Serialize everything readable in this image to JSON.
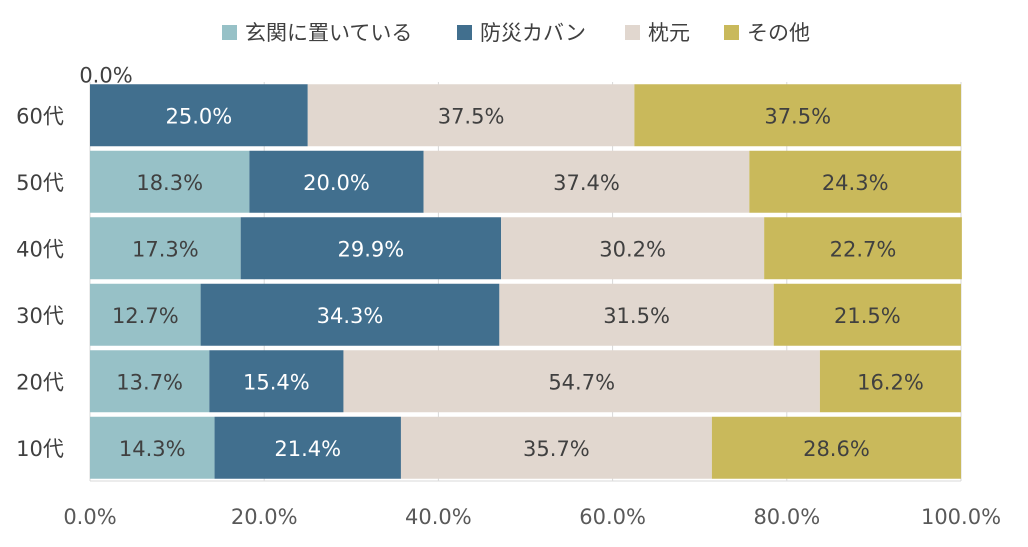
{
  "chart_data": {
    "type": "bar",
    "orientation": "horizontal",
    "stacked": "percent",
    "categories": [
      "60代",
      "50代",
      "40代",
      "30代",
      "20代",
      "10代"
    ],
    "series": [
      {
        "name": "玄関に置いている",
        "color": "#97c1c7",
        "values": [
          0.0,
          18.3,
          17.3,
          12.7,
          13.7,
          14.3
        ]
      },
      {
        "name": "防災カバン",
        "color": "#416f8e",
        "values": [
          25.0,
          20.0,
          29.9,
          34.3,
          15.4,
          21.4
        ]
      },
      {
        "name": "枕元",
        "color": "#e1d7cf",
        "values": [
          37.5,
          37.4,
          30.2,
          31.5,
          54.7,
          35.7
        ]
      },
      {
        "name": "その他",
        "color": "#c9b95b",
        "values": [
          37.5,
          24.3,
          22.7,
          21.5,
          16.2,
          28.6
        ]
      }
    ],
    "label_colors": [
      "#404040",
      "#ffffff",
      "#404040",
      "#404040"
    ],
    "x_ticks": [
      "0.0%",
      "20.0%",
      "40.0%",
      "60.0%",
      "80.0%",
      "100.0%"
    ],
    "x_tick_values": [
      0,
      20,
      40,
      60,
      80,
      100
    ],
    "xlim": [
      0,
      100
    ],
    "legend_position": "top",
    "grid": true
  }
}
